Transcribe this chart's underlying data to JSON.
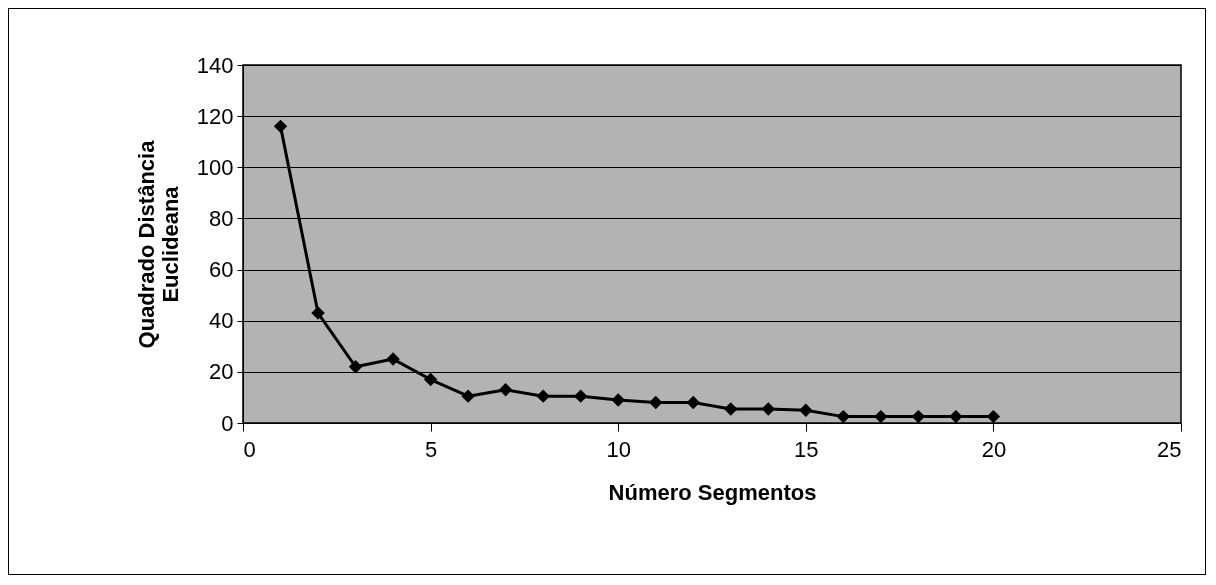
{
  "chart_data": {
    "type": "line",
    "xlabel": "Número Segmentos",
    "ylabel": "Quadrado Distância Euclideana",
    "x": [
      1,
      2,
      3,
      4,
      5,
      6,
      7,
      8,
      9,
      10,
      11,
      12,
      13,
      14,
      15,
      16,
      17,
      18,
      19,
      20
    ],
    "series": [
      {
        "color": "#000000",
        "values": [
          116,
          43,
          22,
          25,
          17,
          10.5,
          13,
          10.5,
          10.5,
          9,
          8,
          8,
          5.5,
          5.5,
          5,
          2.5,
          2.5,
          2.5,
          2.5,
          2.5
        ]
      }
    ],
    "xlim": [
      0,
      25
    ],
    "xticks": [
      0,
      5,
      10,
      15,
      20,
      25
    ],
    "ylim": [
      0,
      140
    ],
    "yticks": [
      0,
      20,
      40,
      60,
      80,
      100,
      120,
      140
    ],
    "grid": "y",
    "marker": "diamond",
    "line_style": "solid"
  }
}
